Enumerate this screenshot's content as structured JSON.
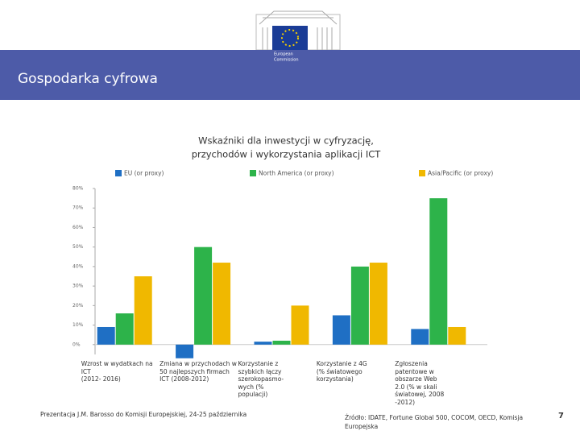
{
  "header": {
    "logo": [
      "European",
      "Commission"
    ],
    "title": "Gospodarka cyfrowa"
  },
  "chart_data": {
    "type": "bar",
    "title": [
      "Wskaźniki dla inwestycji w cyfryzację,",
      "przychodów i wykorzystania aplikacji ICT"
    ],
    "categories": [
      "Wzrost w wydatkach na\nICT\n(2012- 2016)",
      "Zmiana w przychodach w\n50 najlepszych firmach\nICT (2008-2012)",
      "Korzystanie z\nszybkich łączy\nszerokopasmo-\nwych (%\npopulacji)",
      "Korzystanie z 4G\n(% światowego\nkorzystania)",
      "Zgłoszenia\npatentowe w\nobszarze Web\n2.0 (% w skali\nświatowej, 2008\n-2012)"
    ],
    "series": [
      {
        "name": "EU (or proxy)",
        "color": "#1f6fc4",
        "values": [
          9,
          -7,
          1.5,
          15,
          8
        ]
      },
      {
        "name": "North America (or proxy)",
        "color": "#2db34a",
        "values": [
          16,
          50,
          2,
          40,
          75
        ]
      },
      {
        "name": "Asia/Pacific (or proxy)",
        "color": "#f0b800",
        "values": [
          35,
          42,
          20,
          42,
          9
        ]
      }
    ],
    "ylim": [
      -10,
      80
    ],
    "yticks": [
      {
        "value": 0,
        "label": "0%"
      },
      {
        "value": 10,
        "label": "10%"
      },
      {
        "value": 20,
        "label": "20%"
      },
      {
        "value": 30,
        "label": "30%"
      },
      {
        "value": 40,
        "label": "40%"
      },
      {
        "value": 50,
        "label": "50%"
      },
      {
        "value": 60,
        "label": "60%"
      },
      {
        "value": 70,
        "label": "70%"
      },
      {
        "value": 80,
        "label": "80%"
      }
    ],
    "grid": false
  },
  "footer": {
    "presentation": "Prezentacja J.M. Barosso do Komisji Europejskiej, 24-25 października",
    "source": "Źródło: IDATE, Fortune Global 500, COCOM, OECD, Komisja Europejska",
    "page": "7"
  }
}
